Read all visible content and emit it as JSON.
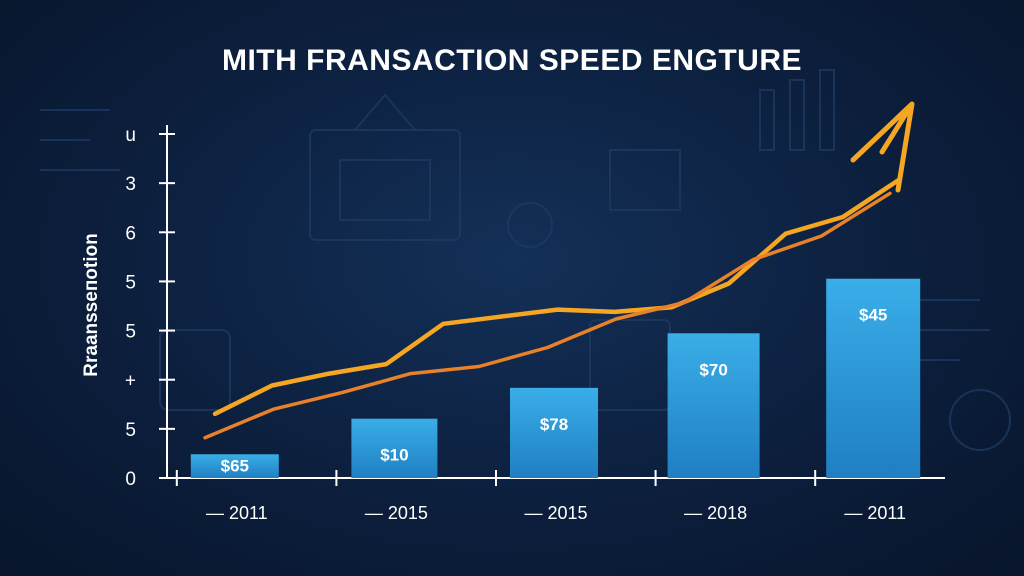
{
  "chart_data": {
    "type": "bar",
    "title": "MITH FRANSACTION SPEED ENGTURE",
    "ylabel": "Rraansseпotion",
    "xlabel": "",
    "y_tick_labels": [
      "0",
      "5",
      "+",
      "5",
      "5",
      "6",
      "3",
      "u"
    ],
    "categories": [
      "2011",
      "2015",
      "2015",
      "2018",
      "2011"
    ],
    "x_tick_prefix": "—",
    "values": [
      0.5,
      1.25,
      1.9,
      3.05,
      4.2
    ],
    "data_labels": [
      "$65",
      "$10",
      "$78",
      "$70",
      "$45"
    ],
    "ylim": [
      0,
      7.25
    ],
    "trend_lines": [
      {
        "values": [
          1.35,
          1.95,
          2.2,
          2.4,
          3.25,
          3.4,
          3.55,
          3.5,
          3.6,
          4.1,
          5.15,
          5.5,
          6.3
        ]
      },
      {
        "values": [
          0.85,
          1.45,
          1.8,
          2.2,
          2.35,
          2.75,
          3.35,
          3.7,
          4.6,
          5.1,
          6.0
        ]
      }
    ],
    "grid": false,
    "colors": {
      "bar": "#2a95d6",
      "bar_top": "#3aaee8",
      "line_primary": "#f5a623",
      "line_secondary": "#e9812a",
      "axis": "#ffffff"
    }
  }
}
